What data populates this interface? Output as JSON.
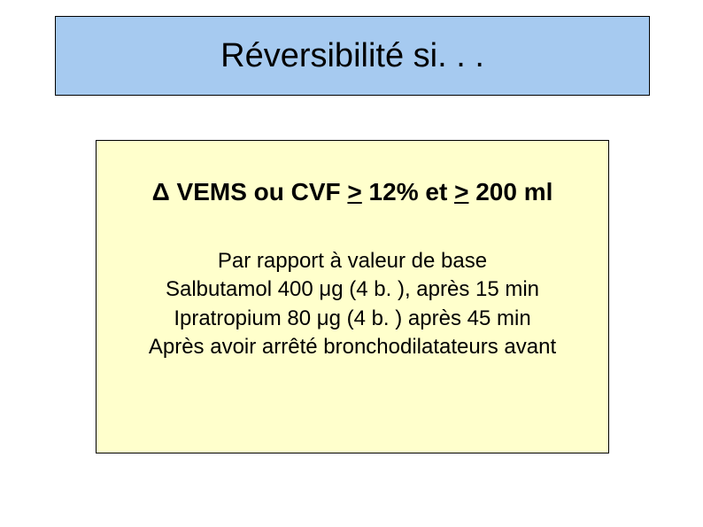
{
  "layout": {
    "slide_width": 794,
    "slide_height": 595,
    "title_box": {
      "bg_color": "#a6caf0",
      "border_color": "#000000",
      "font_size": 38
    },
    "content_box": {
      "bg_color": "#ffffcc",
      "border_color": "#000000",
      "criteria_font_size": 28,
      "body_font_size": 24
    },
    "background_color": "#ffffff",
    "text_color": "#000000"
  },
  "title": "Réversibilité si. . .",
  "criteria": {
    "delta": "Δ",
    "part1": " VEMS ou CVF ",
    "ge1": ">",
    "mid": " 12% et ",
    "ge2": ">",
    "end": " 200 ml"
  },
  "body": {
    "line1": "Par rapport à valeur de base",
    "line2_a": "Salbutamol 400 ",
    "line2_mu": "μ",
    "line2_b": "g (4 b. ), après 15 min",
    "line3_a": "Ipratropium 80 ",
    "line3_mu": "μ",
    "line3_b": "g (4 b. ) après 45 min",
    "line4": "Après avoir arrêté bronchodilatateurs avant"
  }
}
